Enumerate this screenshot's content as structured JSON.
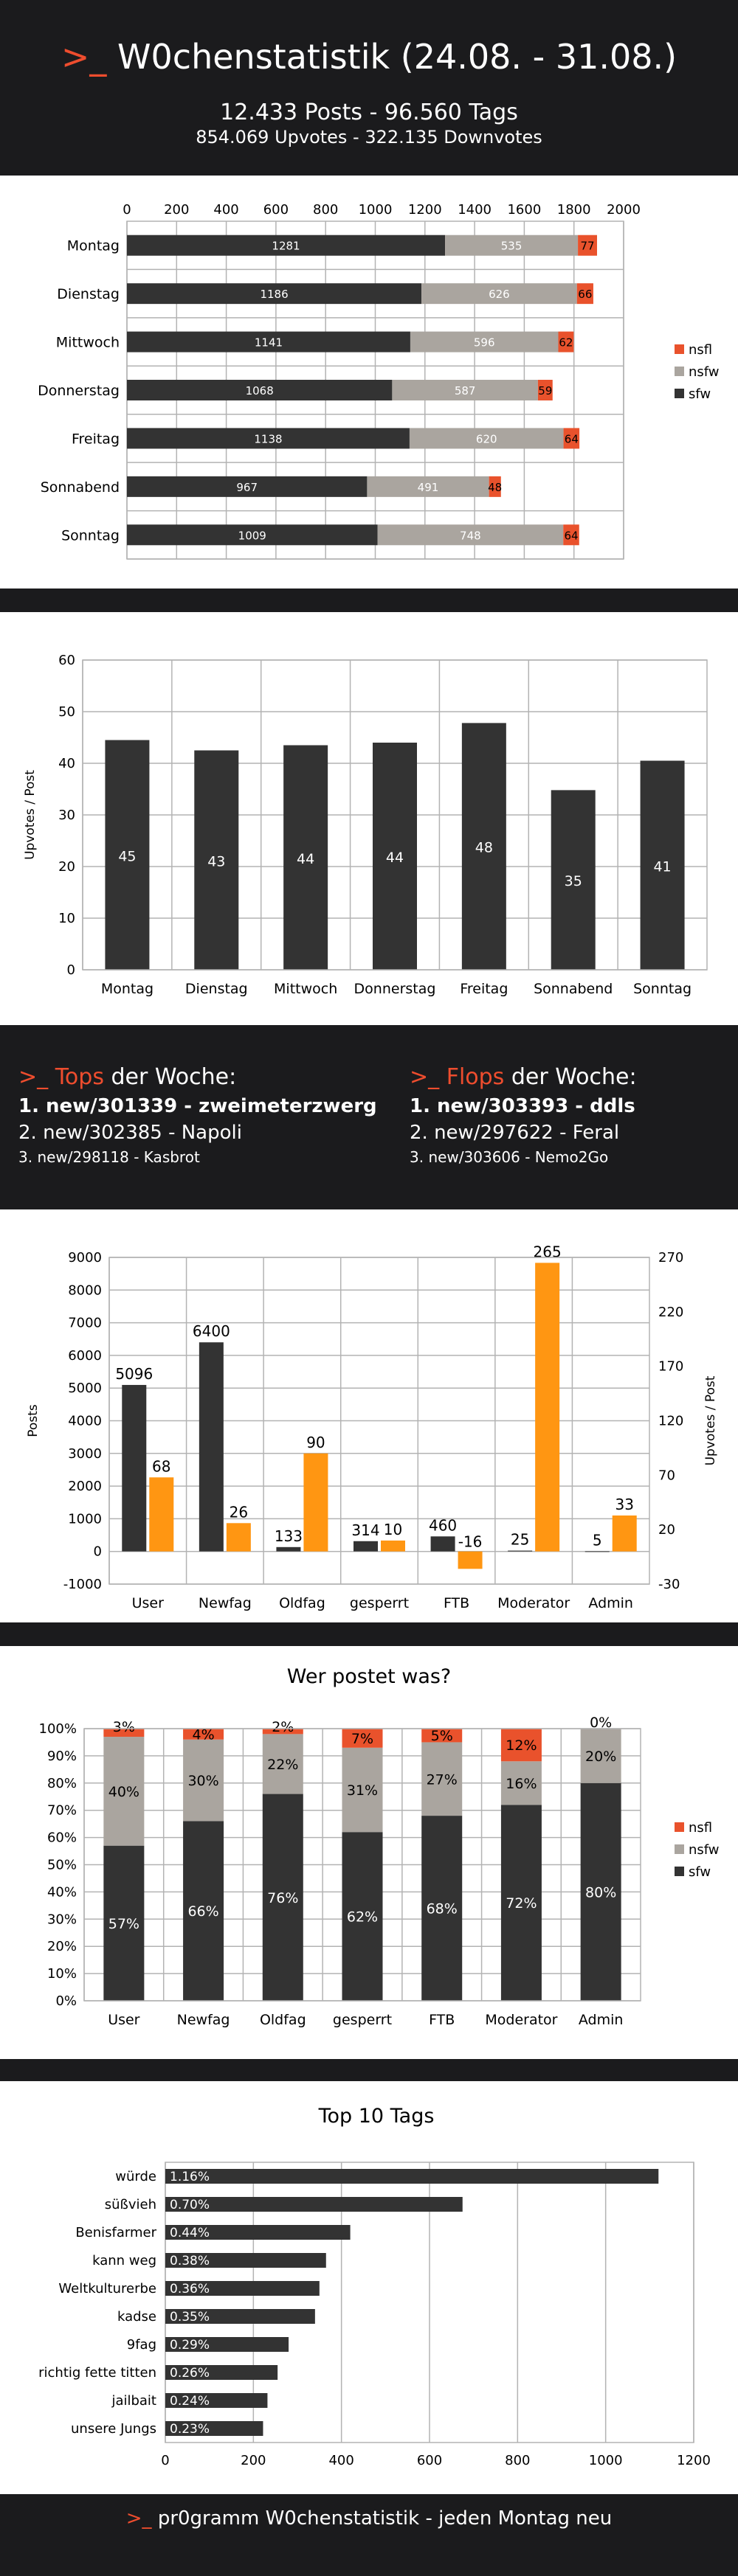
{
  "header": {
    "prompt": ">_",
    "title": "W0chenstatistik (24.08. - 31.08.)",
    "line1": "12.433 Posts - 96.560 Tags",
    "line2": "854.069 Upvotes - 322.135 Downvotes"
  },
  "colors": {
    "sfw": "#333333",
    "nsfw": "#aaa59f",
    "nsfl": "#e9522c",
    "orange": "#ff9612",
    "bar": "#333333"
  },
  "chart_data": [
    {
      "type": "bar",
      "orientation": "horizontal",
      "stacked": true,
      "categories": [
        "Montag",
        "Dienstag",
        "Mittwoch",
        "Donnerstag",
        "Freitag",
        "Sonnabend",
        "Sonntag"
      ],
      "series": [
        {
          "name": "sfw",
          "values": [
            1281,
            1186,
            1141,
            1068,
            1138,
            967,
            1009
          ]
        },
        {
          "name": "nsfw",
          "values": [
            535,
            626,
            596,
            587,
            620,
            491,
            748
          ]
        },
        {
          "name": "nsfl",
          "values": [
            77,
            66,
            62,
            59,
            64,
            48,
            64
          ]
        }
      ],
      "xlim": [
        0,
        2000
      ],
      "xticks": [
        "0",
        "200",
        "400",
        "600",
        "800",
        "1000",
        "1200",
        "1400",
        "1600",
        "1800",
        "2000"
      ],
      "legend": "right"
    },
    {
      "type": "bar",
      "categories": [
        "Montag",
        "Dienstag",
        "Mittwoch",
        "Donnerstag",
        "Freitag",
        "Sonnabend",
        "Sonntag"
      ],
      "values": [
        44.5,
        42.5,
        43.5,
        44,
        47.8,
        34.8,
        40.5
      ],
      "labels": [
        "45",
        "43",
        "44",
        "44",
        "48",
        "35",
        "41"
      ],
      "ylabel": "Upvotes / Post",
      "ylim": [
        0,
        60
      ],
      "yticks": [
        "0",
        "10",
        "20",
        "30",
        "40",
        "50",
        "60"
      ]
    },
    {
      "type": "bar",
      "dual_axis": true,
      "categories": [
        "User",
        "Newfag",
        "Oldfag",
        "gesperrt",
        "FTB",
        "Moderator",
        "Admin"
      ],
      "series": [
        {
          "axis": "left",
          "values": [
            5096,
            6400,
            133,
            314,
            460,
            25,
            5
          ],
          "labels": [
            "5096",
            "6400",
            "133",
            "314",
            "460",
            "25",
            "5"
          ]
        },
        {
          "axis": "right",
          "values": [
            68,
            26,
            90,
            10,
            -16,
            265,
            33
          ],
          "labels": [
            "68",
            "26",
            "90",
            "10",
            "-16",
            "265",
            "33"
          ]
        }
      ],
      "ylabel": "Posts",
      "y2label": "Upvotes / Post",
      "ylim": [
        -1000,
        9000
      ],
      "yticks": [
        "-1000",
        "0",
        "1000",
        "2000",
        "3000",
        "4000",
        "5000",
        "6000",
        "7000",
        "8000",
        "9000"
      ],
      "y2lim": [
        -30,
        270
      ],
      "y2ticks": [
        "-30",
        "20",
        "70",
        "120",
        "170",
        "220",
        "270"
      ]
    },
    {
      "type": "bar",
      "stacked": true,
      "percent": true,
      "title": "Wer postet was?",
      "categories": [
        "User",
        "Newfag",
        "Oldfag",
        "gesperrt",
        "FTB",
        "Moderator",
        "Admin"
      ],
      "series": [
        {
          "name": "sfw",
          "values": [
            57,
            66,
            76,
            62,
            68,
            72,
            80
          ],
          "labels": [
            "57%",
            "66%",
            "76%",
            "62%",
            "68%",
            "72%",
            "80%"
          ]
        },
        {
          "name": "nsfw",
          "values": [
            40,
            30,
            22,
            31,
            27,
            16,
            20
          ],
          "labels": [
            "40%",
            "30%",
            "22%",
            "31%",
            "27%",
            "16%",
            "20%"
          ]
        },
        {
          "name": "nsfl",
          "values": [
            3,
            4,
            2,
            7,
            5,
            12,
            0
          ],
          "labels": [
            "3%",
            "4%",
            "2%",
            "7%",
            "5%",
            "12%",
            "0%"
          ]
        }
      ],
      "yticks": [
        "0%",
        "10%",
        "20%",
        "30%",
        "40%",
        "50%",
        "60%",
        "70%",
        "80%",
        "90%",
        "100%"
      ],
      "legend": "right"
    },
    {
      "type": "bar",
      "orientation": "horizontal",
      "title": "Top 10 Tags",
      "categories": [
        "würde",
        "süßvieh",
        "Benisfarmer",
        "kann weg",
        "Weltkulturerbe",
        "kadse",
        "9fag",
        "richtig fette titten",
        "jailbait",
        "unsere Jungs"
      ],
      "values": [
        1120,
        675,
        420,
        365,
        350,
        340,
        280,
        255,
        232,
        222
      ],
      "labels": [
        "1.16%",
        "0.70%",
        "0.44%",
        "0.38%",
        "0.36%",
        "0.35%",
        "0.29%",
        "0.26%",
        "0.24%",
        "0.23%"
      ],
      "xlim": [
        0,
        1200
      ],
      "xticks": [
        "0",
        "200",
        "400",
        "600",
        "800",
        "1000",
        "1200"
      ]
    }
  ],
  "tops": {
    "prompt": ">_",
    "word": "Tops",
    "suffix": "der Woche:",
    "items": [
      "1. new/301339 - zweimeterzwerg",
      "2. new/302385 - Napoli",
      "3. new/298118 - Kasbrot"
    ]
  },
  "flops": {
    "prompt": ">_",
    "word": "Flops",
    "suffix": "der Woche:",
    "items": [
      "1. new/303393 - ddls",
      "2. new/297622 - Feral",
      "3. new/303606 - Nemo2Go"
    ]
  },
  "footer": {
    "prompt": ">_",
    "text": "pr0gramm W0chenstatistik - jeden Montag neu"
  }
}
